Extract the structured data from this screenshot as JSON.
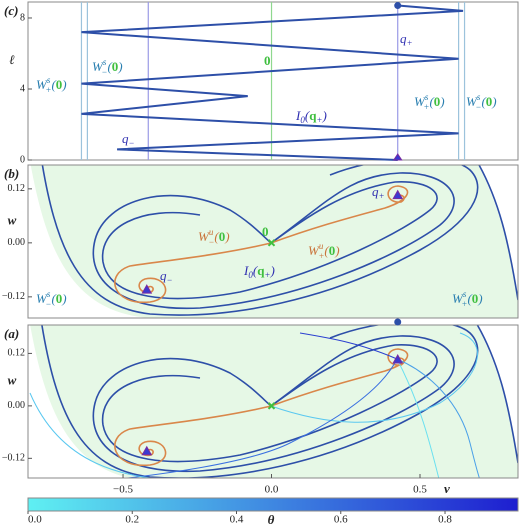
{
  "chart_data": [
    {
      "type": "line",
      "label": "(c)",
      "ylabel": "ℓ",
      "xlim": [
        -0.82,
        0.83
      ],
      "ylim": [
        0,
        8.9
      ],
      "yticks": [
        0,
        4,
        8
      ],
      "x": [
        0.425,
        -0.52,
        0.63,
        -0.64,
        -0.08,
        -0.64,
        0.63,
        -0.64,
        0.645,
        0.425
      ],
      "values": [
        0,
        0.6,
        1.5,
        2.6,
        3.6,
        4.3,
        5.7,
        7.2,
        8.4,
        8.7
      ],
      "color": "#2d4fa8",
      "reference_lines": {
        "x": [
          -0.64,
          -0.62,
          -0.415,
          0,
          0.425,
          0.63,
          0.65
        ],
        "colors": [
          "#9cc3dc",
          "#9cc3dc",
          "#9a9ae6",
          "#8fd88f",
          "#9a9ae6",
          "#9cc3dc",
          "#9cc3dc"
        ]
      },
      "markers": {
        "x": [
          0.425,
          0.425
        ],
        "y": [
          8.7,
          0
        ]
      },
      "annotations": [
        {
          "text": "W",
          "sup": "s",
          "sub": "+",
          "open": "(",
          "arg": "0",
          "close": ")"
        },
        {
          "text": "W",
          "sup": "s",
          "sub": "−",
          "open": "(",
          "arg": "0",
          "close": ")"
        },
        {
          "arg": "0"
        },
        {
          "text": "q",
          "sub": "+"
        },
        {
          "text": "I",
          "sub": "0",
          "open": "(",
          "arg": "q",
          "argsub": "+",
          "close": ")"
        },
        {
          "text": "q",
          "sub": "−"
        },
        {
          "text": "W",
          "sup": "s",
          "sub": "+",
          "open": "(",
          "arg": "0",
          "close": ")"
        },
        {
          "text": "W",
          "sup": "s",
          "sub": "−",
          "open": "(",
          "arg": "0",
          "close": ")"
        }
      ]
    },
    {
      "type": "phase-portrait",
      "label": "(b)",
      "ylabel": "w",
      "xlim": [
        -0.82,
        0.83
      ],
      "ylim": [
        -0.167,
        0.173
      ],
      "yticks": [
        0.12,
        {
          "value": 0,
          "label": "0.00"
        },
        {
          "value": -0.12,
          "label": "−0.12"
        }
      ],
      "equilibria": {
        "x": [
          -0.42,
          0,
          0.425
        ],
        "y": [
          -0.105,
          0,
          0.105
        ]
      },
      "annotations": [
        {
          "arg": "0"
        },
        {
          "text": "q",
          "sub": "+"
        },
        {
          "text": "q",
          "sub": "−"
        },
        {
          "text": "W",
          "sup": "u",
          "sub": "−",
          "open": "(",
          "arg": "0",
          "close": ")"
        },
        {
          "text": "W",
          "sup": "u",
          "sub": "+",
          "open": "(",
          "arg": "0",
          "close": ")"
        },
        {
          "text": "I",
          "sub": "0",
          "open": "(",
          "arg": "q",
          "argsub": "+",
          "close": ")"
        },
        {
          "text": "W",
          "sup": "s",
          "sub": "−",
          "open": "(",
          "arg": "0",
          "close": ")"
        },
        {
          "text": "W",
          "sup": "s",
          "sub": "+",
          "open": "(",
          "arg": "0",
          "close": ")"
        }
      ]
    },
    {
      "type": "phase-portrait",
      "label": "(a)",
      "ylabel": "w",
      "xlabel": "v",
      "xlim": [
        -0.82,
        0.83
      ],
      "ylim": [
        -0.165,
        0.185
      ],
      "yticks": [
        0.12,
        {
          "value": 0,
          "label": "0.00"
        },
        {
          "value": -0.12,
          "label": "−0.12"
        }
      ],
      "xticks": [
        {
          "value": -0.5,
          "label": "−0.5"
        },
        {
          "value": 0,
          "label": "0.0"
        },
        0.5
      ],
      "equilibria": {
        "x": [
          -0.42,
          0,
          0.425
        ],
        "y": [
          -0.105,
          0,
          0.105
        ]
      },
      "markers": {
        "x": [
          0.425
        ],
        "y": [
          0.192
        ]
      }
    },
    {
      "type": "colorbar",
      "label": "θ",
      "lim": [
        0,
        0.94
      ],
      "colors": [
        "#5ff0f2",
        "#1e1ed0"
      ],
      "ticks": [
        {
          "value": 0,
          "label": "0.0"
        },
        0.2,
        0.4,
        0.6,
        0.8
      ]
    }
  ]
}
